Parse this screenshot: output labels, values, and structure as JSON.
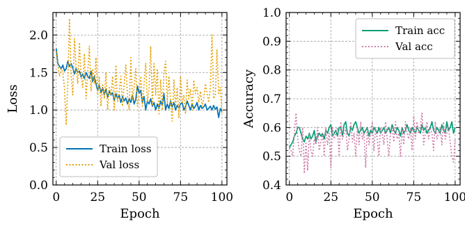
{
  "chart_data": [
    {
      "type": "line",
      "xlabel": "Epoch",
      "ylabel": "Loss",
      "xlim": [
        -2,
        103
      ],
      "ylim": [
        0.0,
        2.3
      ],
      "xticks": [
        0,
        25,
        50,
        75,
        100
      ],
      "yticks": [
        0.0,
        0.5,
        1.0,
        1.5,
        2.0
      ],
      "xtick_labels": [
        "0",
        "25",
        "50",
        "75",
        "100"
      ],
      "ytick_labels": [
        "0.0",
        "0.5",
        "1.0",
        "1.5",
        "2.0"
      ],
      "grid": true,
      "legend_position": "lower-left",
      "series": [
        {
          "name": "Train loss",
          "color": "#0072B2",
          "style": "solid",
          "values": [
            1.82,
            1.62,
            1.58,
            1.55,
            1.6,
            1.52,
            1.55,
            1.65,
            1.58,
            1.62,
            1.56,
            1.48,
            1.55,
            1.5,
            1.52,
            1.44,
            1.48,
            1.42,
            1.5,
            1.45,
            1.42,
            1.52,
            1.38,
            1.45,
            1.35,
            1.26,
            1.33,
            1.23,
            1.3,
            1.2,
            1.28,
            1.17,
            1.25,
            1.2,
            1.23,
            1.12,
            1.22,
            1.15,
            1.2,
            1.1,
            1.18,
            1.12,
            1.16,
            1.08,
            1.15,
            1.1,
            1.2,
            1.08,
            1.14,
            1.32,
            1.22,
            1.26,
            1.1,
            1.18,
            1.0,
            1.12,
            1.08,
            1.15,
            1.05,
            1.1,
            1.0,
            1.08,
            1.02,
            1.12,
            1.06,
            1.22,
            1.0,
            1.08,
            1.02,
            1.12,
            1.04,
            1.1,
            1.0,
            1.06,
            1.03,
            1.08,
            1.1,
            1.0,
            1.04,
            1.12,
            1.06,
            1.0,
            1.08,
            1.02,
            1.05,
            1.1,
            1.0,
            1.06,
            1.02,
            1.04,
            1.08,
            1.0,
            1.02,
            1.05,
            1.0,
            1.06,
            1.01,
            1.04,
            0.9,
            1.02,
            0.98
          ]
        },
        {
          "name": "Val loss",
          "color": "#E69F00",
          "style": "dotted",
          "values": [
            1.78,
            1.6,
            1.45,
            1.55,
            1.5,
            1.28,
            0.8,
            1.35,
            2.22,
            1.45,
            1.2,
            1.95,
            1.55,
            1.35,
            1.9,
            1.45,
            1.3,
            1.75,
            1.15,
            1.5,
            1.85,
            1.25,
            1.55,
            1.35,
            1.7,
            1.2,
            1.45,
            1.05,
            1.35,
            1.15,
            1.5,
            1.0,
            1.3,
            1.2,
            1.45,
            1.0,
            1.6,
            1.1,
            1.25,
            1.45,
            1.05,
            1.35,
            1.6,
            1.2,
            1.0,
            1.7,
            1.15,
            1.3,
            1.55,
            1.05,
            1.2,
            1.45,
            1.05,
            1.35,
            1.62,
            1.1,
            1.3,
            1.85,
            1.05,
            1.62,
            1.2,
            1.55,
            0.95,
            1.4,
            1.0,
            1.5,
            1.65,
            1.1,
            1.45,
            1.1,
            0.85,
            1.4,
            1.05,
            1.3,
            0.9,
            1.45,
            1.1,
            1.2,
            0.95,
            1.4,
            1.15,
            1.28,
            1.0,
            1.4,
            1.22,
            1.3,
            1.1,
            1.25,
            1.05,
            1.15,
            1.35,
            1.22,
            1.1,
            1.3,
            2.0,
            1.15,
            1.2,
            1.8,
            1.22,
            1.3,
            0.95
          ]
        }
      ]
    },
    {
      "type": "line",
      "xlabel": "Epoch",
      "ylabel": "Accuracy",
      "xlim": [
        -2,
        103
      ],
      "ylim": [
        0.4,
        1.0
      ],
      "xticks": [
        0,
        25,
        50,
        75,
        100
      ],
      "yticks": [
        0.4,
        0.5,
        0.6,
        0.7,
        0.8,
        0.9,
        1.0
      ],
      "xtick_labels": [
        "0",
        "25",
        "50",
        "75",
        "100"
      ],
      "ytick_labels": [
        "0.4",
        "0.5",
        "0.6",
        "0.7",
        "0.8",
        "0.9",
        "1.0"
      ],
      "grid": true,
      "legend_position": "top-right",
      "series": [
        {
          "name": "Train acc",
          "color": "#009E73",
          "style": "solid",
          "values": [
            0.53,
            0.54,
            0.55,
            0.57,
            0.58,
            0.6,
            0.6,
            0.58,
            0.56,
            0.55,
            0.57,
            0.56,
            0.58,
            0.56,
            0.57,
            0.59,
            0.55,
            0.57,
            0.58,
            0.57,
            0.58,
            0.56,
            0.59,
            0.58,
            0.6,
            0.61,
            0.57,
            0.58,
            0.59,
            0.57,
            0.6,
            0.6,
            0.57,
            0.61,
            0.62,
            0.58,
            0.57,
            0.6,
            0.59,
            0.61,
            0.62,
            0.6,
            0.58,
            0.59,
            0.6,
            0.58,
            0.59,
            0.6,
            0.57,
            0.59,
            0.58,
            0.6,
            0.59,
            0.58,
            0.6,
            0.58,
            0.59,
            0.6,
            0.58,
            0.59,
            0.6,
            0.58,
            0.61,
            0.59,
            0.58,
            0.6,
            0.59,
            0.57,
            0.6,
            0.58,
            0.59,
            0.61,
            0.59,
            0.58,
            0.6,
            0.59,
            0.58,
            0.6,
            0.59,
            0.58,
            0.61,
            0.59,
            0.6,
            0.58,
            0.59,
            0.6,
            0.62,
            0.59,
            0.58,
            0.6,
            0.59,
            0.58,
            0.61,
            0.59,
            0.58,
            0.62,
            0.59,
            0.6,
            0.62,
            0.58,
            0.6
          ]
        },
        {
          "name": "Val acc",
          "color": "#CC79A7",
          "style": "dotted",
          "values": [
            0.53,
            0.52,
            0.5,
            0.58,
            0.65,
            0.56,
            0.52,
            0.5,
            0.6,
            0.44,
            0.55,
            0.45,
            0.58,
            0.52,
            0.5,
            0.56,
            0.54,
            0.6,
            0.52,
            0.55,
            0.58,
            0.5,
            0.6,
            0.54,
            0.58,
            0.46,
            0.6,
            0.56,
            0.58,
            0.6,
            0.5,
            0.62,
            0.56,
            0.58,
            0.6,
            0.52,
            0.56,
            0.62,
            0.55,
            0.58,
            0.5,
            0.6,
            0.54,
            0.62,
            0.56,
            0.58,
            0.46,
            0.6,
            0.54,
            0.58,
            0.62,
            0.52,
            0.6,
            0.56,
            0.5,
            0.6,
            0.58,
            0.54,
            0.62,
            0.56,
            0.5,
            0.58,
            0.6,
            0.55,
            0.62,
            0.56,
            0.58,
            0.5,
            0.6,
            0.54,
            0.62,
            0.58,
            0.56,
            0.6,
            0.52,
            0.64,
            0.56,
            0.62,
            0.58,
            0.6,
            0.65,
            0.54,
            0.58,
            0.62,
            0.56,
            0.6,
            0.58,
            0.52,
            0.62,
            0.56,
            0.58,
            0.6,
            0.54,
            0.62,
            0.56,
            0.58,
            0.6,
            0.55,
            0.5,
            0.48,
            0.56
          ]
        }
      ]
    }
  ]
}
